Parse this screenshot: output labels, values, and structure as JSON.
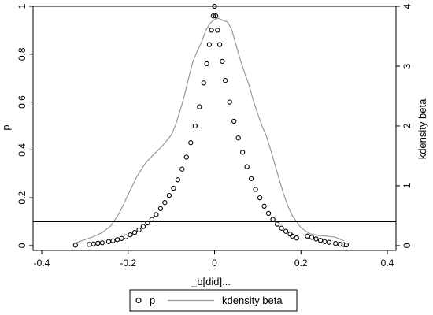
{
  "chart_data": {
    "type": "scatter",
    "x_axis": {
      "label": "_b[did]...",
      "range": [
        -0.42,
        0.42
      ],
      "ticks": [
        -0.4,
        -0.2,
        0,
        0.2,
        0.4
      ],
      "tick_labels": [
        "-0.4",
        "-0.2",
        "0",
        "0.2",
        "0.4"
      ]
    },
    "y_axis_left": {
      "label": "p",
      "range": [
        -0.02,
        1.0
      ],
      "ticks": [
        0,
        0.2,
        0.4,
        0.6,
        0.8,
        1
      ],
      "tick_labels": [
        "0",
        "0.2",
        "0.4",
        "0.6",
        "0.8",
        "1"
      ]
    },
    "y_axis_right": {
      "label": "kdensity beta",
      "range": [
        -0.08,
        4.0
      ],
      "ticks": [
        0,
        1,
        2,
        3,
        4
      ],
      "tick_labels": [
        "0",
        "1",
        "2",
        "3",
        "4"
      ]
    },
    "reference_line": {
      "axis": "y_left",
      "value": 0.1
    },
    "grid": false,
    "legend": {
      "placement": "bottom",
      "entries": [
        "p",
        "kdensity beta"
      ]
    },
    "series": [
      {
        "name": "p",
        "type": "scatter",
        "marker": "hollow-circle",
        "color": "#000000",
        "axis": "left",
        "points": [
          [
            -0.322,
            0.002
          ],
          [
            -0.29,
            0.005
          ],
          [
            -0.28,
            0.007
          ],
          [
            -0.27,
            0.01
          ],
          [
            -0.26,
            0.012
          ],
          [
            -0.245,
            0.017
          ],
          [
            -0.235,
            0.02
          ],
          [
            -0.225,
            0.025
          ],
          [
            -0.215,
            0.03
          ],
          [
            -0.205,
            0.037
          ],
          [
            -0.195,
            0.045
          ],
          [
            -0.185,
            0.055
          ],
          [
            -0.175,
            0.066
          ],
          [
            -0.165,
            0.08
          ],
          [
            -0.155,
            0.095
          ],
          [
            -0.145,
            0.11
          ],
          [
            -0.135,
            0.13
          ],
          [
            -0.125,
            0.155
          ],
          [
            -0.115,
            0.18
          ],
          [
            -0.105,
            0.21
          ],
          [
            -0.095,
            0.24
          ],
          [
            -0.085,
            0.275
          ],
          [
            -0.075,
            0.32
          ],
          [
            -0.065,
            0.37
          ],
          [
            -0.055,
            0.43
          ],
          [
            -0.045,
            0.5
          ],
          [
            -0.035,
            0.58
          ],
          [
            -0.025,
            0.68
          ],
          [
            -0.018,
            0.76
          ],
          [
            -0.012,
            0.84
          ],
          [
            -0.007,
            0.9
          ],
          [
            -0.003,
            0.96
          ],
          [
            0.0,
            1.0
          ],
          [
            0.003,
            0.96
          ],
          [
            0.007,
            0.9
          ],
          [
            0.012,
            0.84
          ],
          [
            0.018,
            0.77
          ],
          [
            0.025,
            0.69
          ],
          [
            0.035,
            0.6
          ],
          [
            0.045,
            0.52
          ],
          [
            0.055,
            0.45
          ],
          [
            0.065,
            0.39
          ],
          [
            0.075,
            0.33
          ],
          [
            0.085,
            0.28
          ],
          [
            0.095,
            0.235
          ],
          [
            0.105,
            0.2
          ],
          [
            0.115,
            0.165
          ],
          [
            0.125,
            0.135
          ],
          [
            0.135,
            0.11
          ],
          [
            0.145,
            0.09
          ],
          [
            0.155,
            0.073
          ],
          [
            0.165,
            0.06
          ],
          [
            0.175,
            0.048
          ],
          [
            0.18,
            0.04
          ],
          [
            0.19,
            0.032
          ],
          [
            0.215,
            0.04
          ],
          [
            0.225,
            0.035
          ],
          [
            0.235,
            0.028
          ],
          [
            0.245,
            0.022
          ],
          [
            0.255,
            0.017
          ],
          [
            0.265,
            0.014
          ],
          [
            0.28,
            0.009
          ],
          [
            0.29,
            0.006
          ],
          [
            0.3,
            0.004
          ],
          [
            0.305,
            0.003
          ]
        ]
      },
      {
        "name": "kdensity beta",
        "type": "line",
        "color": "#999999",
        "axis": "right",
        "points": [
          [
            -0.32,
            0.05
          ],
          [
            -0.3,
            0.1
          ],
          [
            -0.28,
            0.15
          ],
          [
            -0.26,
            0.22
          ],
          [
            -0.24,
            0.33
          ],
          [
            -0.22,
            0.55
          ],
          [
            -0.2,
            0.85
          ],
          [
            -0.18,
            1.15
          ],
          [
            -0.16,
            1.38
          ],
          [
            -0.14,
            1.53
          ],
          [
            -0.12,
            1.67
          ],
          [
            -0.1,
            1.85
          ],
          [
            -0.09,
            2.02
          ],
          [
            -0.08,
            2.25
          ],
          [
            -0.07,
            2.5
          ],
          [
            -0.06,
            2.8
          ],
          [
            -0.05,
            3.08
          ],
          [
            -0.04,
            3.25
          ],
          [
            -0.03,
            3.4
          ],
          [
            -0.02,
            3.6
          ],
          [
            -0.01,
            3.72
          ],
          [
            0.0,
            3.78
          ],
          [
            0.01,
            3.8
          ],
          [
            0.02,
            3.76
          ],
          [
            0.03,
            3.74
          ],
          [
            0.04,
            3.6
          ],
          [
            0.05,
            3.35
          ],
          [
            0.06,
            3.1
          ],
          [
            0.07,
            2.88
          ],
          [
            0.08,
            2.68
          ],
          [
            0.09,
            2.42
          ],
          [
            0.1,
            2.2
          ],
          [
            0.11,
            2.0
          ],
          [
            0.12,
            1.83
          ],
          [
            0.13,
            1.6
          ],
          [
            0.14,
            1.35
          ],
          [
            0.15,
            1.1
          ],
          [
            0.16,
            0.86
          ],
          [
            0.17,
            0.66
          ],
          [
            0.18,
            0.5
          ],
          [
            0.2,
            0.3
          ],
          [
            0.22,
            0.2
          ],
          [
            0.24,
            0.17
          ],
          [
            0.26,
            0.16
          ],
          [
            0.28,
            0.14
          ],
          [
            0.3,
            0.08
          ]
        ]
      }
    ]
  }
}
